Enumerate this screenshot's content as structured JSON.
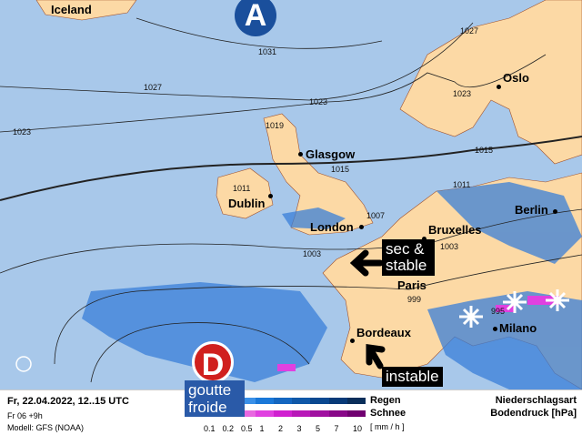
{
  "map": {
    "high": {
      "letter": "A",
      "color": "#1a4f9c"
    },
    "low": {
      "letter": "D",
      "color": "#d0201e"
    },
    "cities": [
      {
        "name": "Iceland"
      },
      {
        "name": "Oslo"
      },
      {
        "name": "Glasgow"
      },
      {
        "name": "Dublin"
      },
      {
        "name": "London"
      },
      {
        "name": "Bruxelles"
      },
      {
        "name": "Berlin"
      },
      {
        "name": "Paris"
      },
      {
        "name": "Bordeaux"
      },
      {
        "name": "Milano"
      }
    ],
    "isobars": [
      "1031",
      "1027",
      "1027",
      "1023",
      "1023",
      "1023",
      "1019",
      "1015",
      "1015",
      "1011",
      "1011",
      "1007",
      "1003",
      "1003",
      "999",
      "995"
    ],
    "annotations": {
      "dry": "sec & stable",
      "unstable": "instable",
      "cutoff": "goutte froide"
    },
    "colors": {
      "sea": "#a8c8ea",
      "land": "#fcd9a5",
      "rain": "#3a7fd8",
      "snow": "#e040e0"
    }
  },
  "legend": {
    "date": "Fr, 22.04.2022, 12..15 UTC",
    "run": "Fr 06 +9h",
    "model": "Modell: GFS (NOAA)",
    "rain_label": "Regen",
    "snow_label": "Schnee",
    "unit": "[ mm / h ]",
    "ticks": [
      "0.1",
      "0.2",
      "0.5",
      "1",
      "2",
      "3",
      "5",
      "7",
      "10"
    ],
    "title1": "Niederschlagsart",
    "title2": "Bodendruck [hPa]",
    "rain_colors": [
      "#a8d0f8",
      "#6ab0f0",
      "#3a90e8",
      "#1a78d8",
      "#1466c0",
      "#1058a8",
      "#0a4890",
      "#083a78",
      "#0a2e5a"
    ],
    "snow_colors": [
      "#f8c8f0",
      "#f090e8",
      "#e868e0",
      "#e040e0",
      "#d020d0",
      "#b818b8",
      "#a010a0",
      "#880888",
      "#700070"
    ]
  }
}
